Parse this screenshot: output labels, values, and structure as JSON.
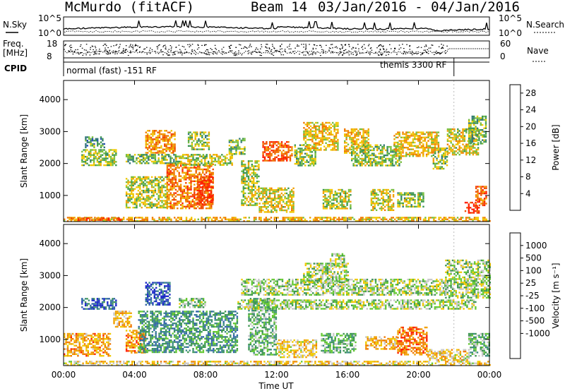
{
  "header": {
    "station": "McMurdo (fitACF)",
    "beam": "Beam 14",
    "date_range": "03/Jan/2016 - 04/Jan/2016"
  },
  "panels_top": {
    "nsky_label": "N.Sky",
    "nsearch_label": "N.Search",
    "nsky_ticks": [
      "10^5",
      "10^0"
    ],
    "nsearch_ticks": [
      "10^5",
      "10^0"
    ],
    "freq_label_1": "Freq.",
    "freq_label_2": "[MHz]",
    "freq_ticks": [
      "18",
      "8"
    ],
    "nave_label": "Nave",
    "nave_ticks": [
      "60",
      "0"
    ],
    "cpid_label": "CPID",
    "cpid_modes": [
      {
        "label": "normal (fast) -151 RF",
        "start_hour": 0.0,
        "end_hour": 22.0
      },
      {
        "label": "themis 3300 RF",
        "start_hour": 22.0,
        "end_hour": 24.0
      }
    ]
  },
  "chart_data": [
    {
      "type": "heatmap",
      "name": "power",
      "ylabel": "Slant Range [km]",
      "xlabel": "Time UT",
      "xlim": [
        0,
        24
      ],
      "ylim": [
        180,
        4600
      ],
      "x_ticks": [
        "00:00",
        "04:00",
        "08:00",
        "12:00",
        "16:00",
        "20:00",
        "00:00"
      ],
      "y_ticks": [
        1000,
        2000,
        3000,
        4000
      ],
      "colorbar": {
        "label": "Power [dB]",
        "ticks": [
          4,
          8,
          12,
          16,
          20,
          24,
          28
        ],
        "range": [
          0,
          30
        ],
        "colors": [
          "#1c1cff",
          "#2850b4",
          "#327878",
          "#3c9650",
          "#78be3c",
          "#f0c800",
          "#f0a000",
          "#f07800",
          "#f04b00",
          "#ff1e00"
        ]
      },
      "regions": [
        {
          "t0": 0.0,
          "t1": 24.0,
          "r0": 180,
          "r1": 330,
          "level": 0.62
        },
        {
          "t0": 0.4,
          "t1": 3.2,
          "r0": 210,
          "r1": 310,
          "level": 0.8
        },
        {
          "t0": 1.0,
          "t1": 3.0,
          "r0": 1950,
          "r1": 2450,
          "level": 0.45
        },
        {
          "t0": 1.2,
          "t1": 2.3,
          "r0": 2500,
          "r1": 2850,
          "level": 0.35
        },
        {
          "t0": 3.5,
          "t1": 6.3,
          "r0": 2000,
          "r1": 2300,
          "level": 0.4
        },
        {
          "t0": 4.6,
          "t1": 6.3,
          "r0": 2350,
          "r1": 3050,
          "level": 0.7
        },
        {
          "t0": 3.5,
          "t1": 5.8,
          "r0": 600,
          "r1": 1600,
          "level": 0.5
        },
        {
          "t0": 5.8,
          "t1": 8.4,
          "r0": 600,
          "r1": 2000,
          "level": 0.75
        },
        {
          "t0": 7.5,
          "t1": 8.4,
          "r0": 700,
          "r1": 1600,
          "level": 0.95
        },
        {
          "t0": 6.3,
          "t1": 9.5,
          "r0": 1950,
          "r1": 2300,
          "level": 0.5
        },
        {
          "t0": 7.0,
          "t1": 8.2,
          "r0": 2450,
          "r1": 3000,
          "level": 0.45
        },
        {
          "t0": 9.3,
          "t1": 10.2,
          "r0": 2300,
          "r1": 2800,
          "level": 0.4
        },
        {
          "t0": 10.0,
          "t1": 11.0,
          "r0": 700,
          "r1": 2100,
          "level": 0.5
        },
        {
          "t0": 11.2,
          "t1": 12.9,
          "r0": 2100,
          "r1": 2700,
          "level": 0.85
        },
        {
          "t0": 11.0,
          "t1": 13.0,
          "r0": 500,
          "r1": 1250,
          "level": 0.55
        },
        {
          "t0": 13.0,
          "t1": 14.2,
          "r0": 1950,
          "r1": 2600,
          "level": 0.45
        },
        {
          "t0": 13.5,
          "t1": 15.5,
          "r0": 2450,
          "r1": 3300,
          "level": 0.6
        },
        {
          "t0": 14.6,
          "t1": 16.2,
          "r0": 600,
          "r1": 1200,
          "level": 0.5
        },
        {
          "t0": 15.8,
          "t1": 17.2,
          "r0": 2350,
          "r1": 3100,
          "level": 0.6
        },
        {
          "t0": 16.2,
          "t1": 19.0,
          "r0": 1950,
          "r1": 2600,
          "level": 0.45
        },
        {
          "t0": 17.3,
          "t1": 18.6,
          "r0": 550,
          "r1": 1200,
          "level": 0.55
        },
        {
          "t0": 18.6,
          "t1": 21.1,
          "r0": 2250,
          "r1": 3000,
          "level": 0.6
        },
        {
          "t0": 18.8,
          "t1": 20.3,
          "r0": 650,
          "r1": 1100,
          "level": 0.45
        },
        {
          "t0": 20.8,
          "t1": 21.6,
          "r0": 1850,
          "r1": 2500,
          "level": 0.45
        },
        {
          "t0": 21.6,
          "t1": 23.4,
          "r0": 2300,
          "r1": 3100,
          "level": 0.55
        },
        {
          "t0": 22.8,
          "t1": 23.8,
          "r0": 2600,
          "r1": 3500,
          "level": 0.4
        },
        {
          "t0": 22.6,
          "t1": 23.4,
          "r0": 450,
          "r1": 800,
          "level": 0.95
        },
        {
          "t0": 23.2,
          "t1": 23.8,
          "r0": 700,
          "r1": 1300,
          "level": 0.8
        }
      ]
    },
    {
      "type": "heatmap",
      "name": "velocity",
      "ylabel": "Slant Range [km]",
      "xlabel": "Time UT",
      "xlim": [
        0,
        24
      ],
      "ylim": [
        180,
        4600
      ],
      "x_ticks": [
        "00:00",
        "04:00",
        "08:00",
        "12:00",
        "16:00",
        "20:00",
        "00:00"
      ],
      "y_ticks": [
        1000,
        2000,
        3000,
        4000
      ],
      "colorbar": {
        "label": "Velocity [m s⁻¹]",
        "ticks": [
          "1000",
          "500",
          "100",
          "25",
          "-25",
          "-100",
          "-500",
          "-1000"
        ],
        "colors": [
          "#1c28c8",
          "#3264aa",
          "#3c8c82",
          "#3c9650",
          "#64c832",
          "#c8c8c8",
          "#f0c800",
          "#f0a000",
          "#f07800",
          "#ff1e00"
        ]
      },
      "regions": [
        {
          "t0": 0.0,
          "t1": 24.0,
          "r0": 180,
          "r1": 330,
          "level": 0.65
        },
        {
          "t0": 0.0,
          "t1": 2.6,
          "r0": 500,
          "r1": 1200,
          "level": 0.75
        },
        {
          "t0": 1.0,
          "t1": 3.0,
          "r0": 1950,
          "r1": 2300,
          "level": 0.15
        },
        {
          "t0": 2.8,
          "t1": 3.8,
          "r0": 1400,
          "r1": 1900,
          "level": 0.7
        },
        {
          "t0": 3.5,
          "t1": 4.6,
          "r0": 600,
          "r1": 1300,
          "level": 0.8
        },
        {
          "t0": 4.6,
          "t1": 6.0,
          "r0": 2100,
          "r1": 2800,
          "level": 0.1
        },
        {
          "t0": 4.2,
          "t1": 9.8,
          "r0": 600,
          "r1": 1900,
          "level": 0.3
        },
        {
          "t0": 10.4,
          "t1": 12.0,
          "r0": 500,
          "r1": 2300,
          "level": 0.4
        },
        {
          "t0": 6.5,
          "t1": 8.0,
          "r0": 2000,
          "r1": 2300,
          "level": 0.45
        },
        {
          "t0": 9.8,
          "t1": 23.2,
          "r0": 1950,
          "r1": 2250,
          "level": 0.5
        },
        {
          "t0": 10.0,
          "t1": 21.5,
          "r0": 2400,
          "r1": 2900,
          "level": 0.5
        },
        {
          "t0": 13.5,
          "t1": 16.0,
          "r0": 2800,
          "r1": 3400,
          "level": 0.5
        },
        {
          "t0": 15.0,
          "t1": 15.8,
          "r0": 3300,
          "r1": 3700,
          "level": 0.5
        },
        {
          "t0": 21.5,
          "t1": 24.0,
          "r0": 2300,
          "r1": 3500,
          "level": 0.5
        },
        {
          "t0": 12.0,
          "t1": 14.2,
          "r0": 450,
          "r1": 1000,
          "level": 0.65
        },
        {
          "t0": 14.5,
          "t1": 16.5,
          "r0": 600,
          "r1": 1200,
          "level": 0.4
        },
        {
          "t0": 17.0,
          "t1": 18.8,
          "r0": 700,
          "r1": 1100,
          "level": 0.72
        },
        {
          "t0": 18.8,
          "t1": 20.5,
          "r0": 500,
          "r1": 1400,
          "level": 0.85
        },
        {
          "t0": 20.5,
          "t1": 22.8,
          "r0": 350,
          "r1": 700,
          "level": 0.65
        },
        {
          "t0": 22.8,
          "t1": 24.0,
          "r0": 500,
          "r1": 1200,
          "level": 0.4
        }
      ]
    }
  ]
}
